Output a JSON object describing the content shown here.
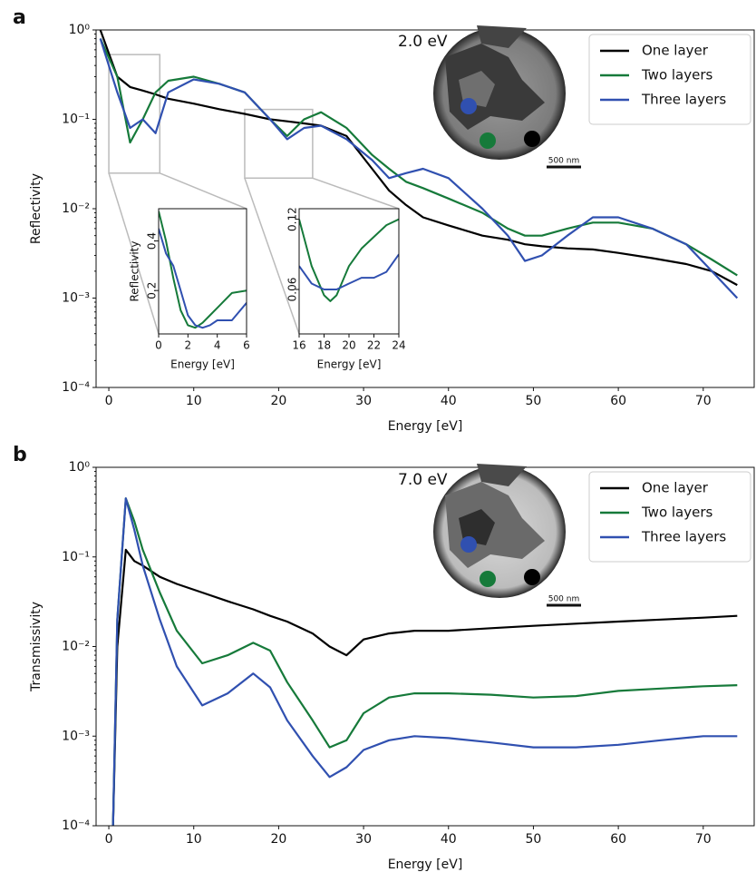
{
  "chart_data": [
    {
      "type": "line",
      "panel_label": "a",
      "xlabel": "Energy [eV]",
      "ylabel": "Reflectivity",
      "annotation": "2.0 eV",
      "scale_bar": "500 nm",
      "log_y": true,
      "legend": "upper right",
      "xlim": [
        -1.5,
        76
      ],
      "ylim": [
        0.0001,
        1
      ],
      "xticks": [
        0,
        10,
        20,
        30,
        40,
        50,
        60,
        70
      ],
      "yticks": [
        {
          "value": 0.0001,
          "label": "10⁻⁴"
        },
        {
          "value": 0.001,
          "label": "10⁻³"
        },
        {
          "value": 0.01,
          "label": "10⁻²"
        },
        {
          "value": 0.1,
          "label": "10⁻¹"
        },
        {
          "value": 1,
          "label": "10⁰"
        }
      ],
      "x": [
        -1,
        1,
        2.5,
        4,
        5.5,
        7,
        10,
        13,
        16,
        19,
        21,
        23,
        25,
        28,
        31,
        33,
        35,
        37,
        40,
        44,
        47,
        49,
        51,
        54,
        57,
        60,
        64,
        68,
        71,
        74
      ],
      "series": [
        {
          "name": "One layer",
          "color": "#000000",
          "values": [
            1.0,
            0.3,
            0.23,
            0.21,
            0.19,
            0.17,
            0.15,
            0.13,
            0.115,
            0.1,
            0.095,
            0.09,
            0.085,
            0.065,
            0.028,
            0.016,
            0.011,
            0.008,
            0.0065,
            0.005,
            0.0045,
            0.004,
            0.0038,
            0.0036,
            0.0035,
            0.0032,
            0.0028,
            0.0024,
            0.002,
            0.0014
          ]
        },
        {
          "name": "Two layers",
          "color": "#167a3a",
          "values": [
            0.8,
            0.3,
            0.055,
            0.1,
            0.2,
            0.27,
            0.3,
            0.25,
            0.2,
            0.1,
            0.065,
            0.1,
            0.12,
            0.08,
            0.04,
            0.028,
            0.02,
            0.017,
            0.013,
            0.009,
            0.006,
            0.005,
            0.005,
            0.006,
            0.007,
            0.007,
            0.006,
            0.004,
            0.0027,
            0.0018
          ]
        },
        {
          "name": "Three layers",
          "color": "#3050b0",
          "values": [
            0.8,
            0.2,
            0.08,
            0.1,
            0.07,
            0.2,
            0.28,
            0.25,
            0.2,
            0.1,
            0.06,
            0.08,
            0.085,
            0.06,
            0.035,
            0.022,
            0.025,
            0.028,
            0.022,
            0.01,
            0.005,
            0.0026,
            0.003,
            0.005,
            0.008,
            0.008,
            0.006,
            0.004,
            0.002,
            0.001
          ]
        }
      ]
    },
    {
      "type": "line",
      "xlabel": "Energy [eV]",
      "ylabel": "Reflectivity",
      "xlim": [
        0,
        6
      ],
      "ylim": [
        0.025,
        0.53
      ],
      "xticks": [
        0,
        2,
        4,
        6
      ],
      "yticks": [
        0.2,
        0.4
      ],
      "x": [
        0,
        0.5,
        1,
        1.5,
        2,
        2.5,
        3,
        3.5,
        4,
        5,
        6
      ],
      "series": [
        {
          "color": "#167a3a",
          "values": [
            0.52,
            0.4,
            0.25,
            0.12,
            0.06,
            0.05,
            0.07,
            0.1,
            0.13,
            0.19,
            0.2
          ]
        },
        {
          "color": "#3050b0",
          "values": [
            0.45,
            0.35,
            0.3,
            0.2,
            0.1,
            0.06,
            0.05,
            0.06,
            0.08,
            0.08,
            0.15
          ]
        }
      ]
    },
    {
      "type": "line",
      "xlabel": "Energy [eV]",
      "xlim": [
        16,
        24
      ],
      "ylim": [
        0.022,
        0.129
      ],
      "xticks": [
        16,
        18,
        20,
        22,
        24
      ],
      "yticks": [
        0.06,
        0.12
      ],
      "x": [
        16,
        17,
        18,
        18.5,
        19,
        20,
        21,
        22,
        23,
        24
      ],
      "series": [
        {
          "color": "#167a3a",
          "values": [
            0.12,
            0.08,
            0.055,
            0.05,
            0.055,
            0.08,
            0.095,
            0.105,
            0.115,
            0.12
          ]
        },
        {
          "color": "#3050b0",
          "values": [
            0.08,
            0.065,
            0.06,
            0.06,
            0.06,
            0.065,
            0.07,
            0.07,
            0.075,
            0.09
          ]
        }
      ]
    },
    {
      "type": "line",
      "panel_label": "b",
      "xlabel": "Energy [eV]",
      "ylabel": "Transmissivity",
      "annotation": "7.0 eV",
      "scale_bar": "500 nm",
      "log_y": true,
      "legend": "upper right",
      "xlim": [
        -1.5,
        76
      ],
      "ylim": [
        0.0001,
        1
      ],
      "xticks": [
        0,
        10,
        20,
        30,
        40,
        50,
        60,
        70
      ],
      "yticks": [
        {
          "value": 0.0001,
          "label": "10⁻⁴"
        },
        {
          "value": 0.001,
          "label": "10⁻³"
        },
        {
          "value": 0.01,
          "label": "10⁻²"
        },
        {
          "value": 0.1,
          "label": "10⁻¹"
        },
        {
          "value": 1,
          "label": "10⁰"
        }
      ],
      "x": [
        0.5,
        1,
        2,
        3,
        4,
        6,
        8,
        11,
        14,
        17,
        19,
        21,
        24,
        26,
        28,
        30,
        33,
        36,
        40,
        45,
        50,
        55,
        60,
        65,
        70,
        74
      ],
      "series": [
        {
          "name": "One layer",
          "color": "#000000",
          "values": [
            0.0001,
            0.01,
            0.12,
            0.09,
            0.08,
            0.06,
            0.05,
            0.04,
            0.032,
            0.026,
            0.022,
            0.019,
            0.014,
            0.01,
            0.008,
            0.012,
            0.014,
            0.015,
            0.015,
            0.016,
            0.017,
            0.018,
            0.019,
            0.02,
            0.021,
            0.022
          ]
        },
        {
          "name": "Two layers",
          "color": "#167a3a",
          "values": [
            0.0001,
            0.02,
            0.45,
            0.25,
            0.12,
            0.04,
            0.015,
            0.0065,
            0.008,
            0.011,
            0.009,
            0.004,
            0.0015,
            0.00075,
            0.0009,
            0.0018,
            0.0027,
            0.003,
            0.003,
            0.0029,
            0.0027,
            0.0028,
            0.0032,
            0.0034,
            0.0036,
            0.0037
          ]
        },
        {
          "name": "Three layers",
          "color": "#3050b0",
          "values": [
            0.0001,
            0.02,
            0.45,
            0.2,
            0.08,
            0.02,
            0.006,
            0.0022,
            0.003,
            0.005,
            0.0035,
            0.0015,
            0.0006,
            0.00035,
            0.00045,
            0.0007,
            0.0009,
            0.001,
            0.00095,
            0.00085,
            0.00075,
            0.00075,
            0.0008,
            0.0009,
            0.001,
            0.001
          ]
        }
      ]
    }
  ]
}
